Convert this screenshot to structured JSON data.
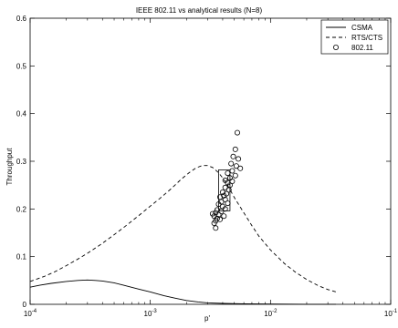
{
  "chart_data": {
    "type": "line",
    "title": "IEEE 802.11 vs analytical results (N=8)",
    "xlabel": "p'",
    "ylabel": "Throughput",
    "xscale": "log",
    "xlim": [
      0.0001,
      0.1
    ],
    "ylim": [
      0,
      0.6
    ],
    "grid": false,
    "legend_position": "top-right",
    "x_ticks": [
      {
        "value": 0.0001,
        "base": "10",
        "exp": "-4"
      },
      {
        "value": 0.001,
        "base": "10",
        "exp": "-3"
      },
      {
        "value": 0.01,
        "base": "10",
        "exp": "-2"
      },
      {
        "value": 0.1,
        "base": "10",
        "exp": "-1"
      }
    ],
    "y_ticks": [
      "0",
      "0.1",
      "0.2",
      "0.3",
      "0.4",
      "0.5",
      "0.6"
    ],
    "series": [
      {
        "name": "CSMA",
        "style": "solid",
        "points": [
          [
            0.0001,
            0.036
          ],
          [
            0.00012,
            0.04
          ],
          [
            0.00015,
            0.044
          ],
          [
            0.0002,
            0.048
          ],
          [
            0.00025,
            0.05
          ],
          [
            0.0003,
            0.051
          ],
          [
            0.00035,
            0.05
          ],
          [
            0.0004,
            0.049
          ],
          [
            0.0005,
            0.045
          ],
          [
            0.0006,
            0.04
          ],
          [
            0.0008,
            0.032
          ],
          [
            0.001,
            0.026
          ],
          [
            0.0013,
            0.018
          ],
          [
            0.0016,
            0.013
          ],
          [
            0.002,
            0.008
          ],
          [
            0.0025,
            0.005
          ],
          [
            0.003,
            0.003
          ],
          [
            0.004,
            0.002
          ],
          [
            0.006,
            0.001
          ],
          [
            0.01,
            0.0005
          ],
          [
            0.02,
            0.0002
          ],
          [
            0.035,
            0.0001
          ]
        ]
      },
      {
        "name": "RTS/CTS",
        "style": "dashed",
        "points": [
          [
            0.0001,
            0.048
          ],
          [
            0.00013,
            0.058
          ],
          [
            0.00016,
            0.068
          ],
          [
            0.0002,
            0.081
          ],
          [
            0.00025,
            0.095
          ],
          [
            0.0003,
            0.107
          ],
          [
            0.0004,
            0.128
          ],
          [
            0.0005,
            0.146
          ],
          [
            0.0006,
            0.161
          ],
          [
            0.0008,
            0.186
          ],
          [
            0.001,
            0.206
          ],
          [
            0.0012,
            0.222
          ],
          [
            0.0015,
            0.243
          ],
          [
            0.0018,
            0.262
          ],
          [
            0.0021,
            0.276
          ],
          [
            0.0024,
            0.286
          ],
          [
            0.0027,
            0.291
          ],
          [
            0.003,
            0.291
          ],
          [
            0.0033,
            0.287
          ],
          [
            0.0037,
            0.276
          ],
          [
            0.004,
            0.265
          ],
          [
            0.0045,
            0.245
          ],
          [
            0.005,
            0.224
          ],
          [
            0.006,
            0.192
          ],
          [
            0.007,
            0.165
          ],
          [
            0.008,
            0.143
          ],
          [
            0.01,
            0.114
          ],
          [
            0.013,
            0.086
          ],
          [
            0.016,
            0.068
          ],
          [
            0.02,
            0.052
          ],
          [
            0.025,
            0.039
          ],
          [
            0.03,
            0.031
          ],
          [
            0.035,
            0.026
          ]
        ]
      },
      {
        "name": "802.11",
        "style": "marker",
        "points": [
          [
            0.0053,
            0.36
          ],
          [
            0.0051,
            0.325
          ],
          [
            0.0049,
            0.31
          ],
          [
            0.0054,
            0.305
          ],
          [
            0.0047,
            0.295
          ],
          [
            0.0052,
            0.29
          ],
          [
            0.0056,
            0.285
          ],
          [
            0.0048,
            0.28
          ],
          [
            0.0044,
            0.275
          ],
          [
            0.0051,
            0.27
          ],
          [
            0.0046,
            0.265
          ],
          [
            0.0042,
            0.26
          ],
          [
            0.0048,
            0.258
          ],
          [
            0.0044,
            0.255
          ],
          [
            0.0046,
            0.25
          ],
          [
            0.0042,
            0.245
          ],
          [
            0.0045,
            0.24
          ],
          [
            0.004,
            0.235
          ],
          [
            0.0043,
            0.232
          ],
          [
            0.0041,
            0.228
          ],
          [
            0.0038,
            0.225
          ],
          [
            0.0042,
            0.22
          ],
          [
            0.0039,
            0.215
          ],
          [
            0.0044,
            0.212
          ],
          [
            0.0037,
            0.21
          ],
          [
            0.004,
            0.205
          ],
          [
            0.0042,
            0.2
          ],
          [
            0.0036,
            0.198
          ],
          [
            0.0039,
            0.195
          ],
          [
            0.0035,
            0.192
          ],
          [
            0.0037,
            0.188
          ],
          [
            0.0041,
            0.185
          ],
          [
            0.0034,
            0.185
          ],
          [
            0.0036,
            0.18
          ],
          [
            0.0038,
            0.178
          ],
          [
            0.0033,
            0.19
          ],
          [
            0.0035,
            0.175
          ],
          [
            0.0034,
            0.17
          ],
          [
            0.0035,
            0.16
          ]
        ]
      }
    ],
    "annotation_box": {
      "x_min": 0.0037,
      "x_max": 0.0046,
      "y_min": 0.196,
      "y_max": 0.282
    }
  }
}
